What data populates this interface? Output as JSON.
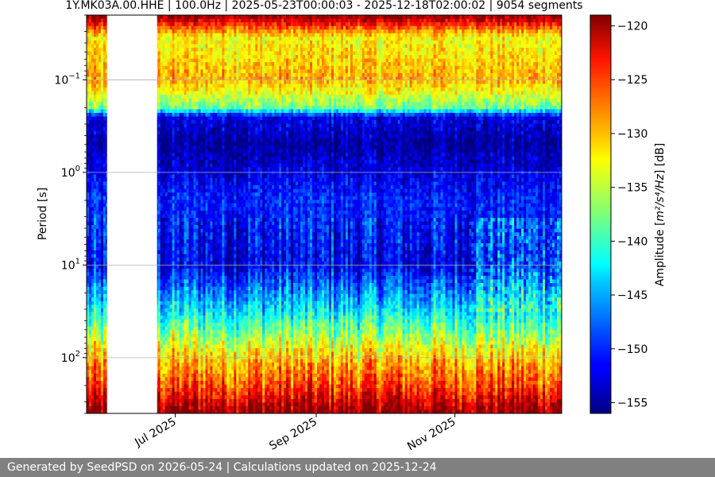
{
  "chart_data": {
    "type": "heatmap",
    "title": "1Y.MK03A.00.HHE | 100.0Hz | 2025-05-23T00:00:03 - 2025-12-18T02:00:02 | 9054 segments",
    "ylabel": "Period [s]",
    "xlabel": "",
    "colorbar_label_prefix": "Amplitude [",
    "colorbar_label_math": "m²/s⁴/Hz",
    "colorbar_label_suffix": "] [dB]",
    "x_range": [
      "2025-05-23",
      "2025-12-18"
    ],
    "x_ticks": [
      {
        "date": "2025-07-01",
        "label": "Jul 2025"
      },
      {
        "date": "2025-09-01",
        "label": "Sep 2025"
      },
      {
        "date": "2025-11-01",
        "label": "Nov 2025"
      }
    ],
    "y_scale": "log",
    "y_inverted": true,
    "y_range": [
      0.02,
      400
    ],
    "y_ticks": [
      {
        "value": 0.1,
        "base": "10",
        "exp": "−1"
      },
      {
        "value": 1,
        "base": "10",
        "exp": "0"
      },
      {
        "value": 10,
        "base": "10",
        "exp": "1"
      },
      {
        "value": 100,
        "base": "10",
        "exp": "2"
      }
    ],
    "grid": true,
    "data_gap": {
      "start": "2025-06-01",
      "end": "2025-06-23"
    },
    "colorbar": {
      "colormap": "jet",
      "range": [
        -156,
        -119
      ],
      "ticks": [
        "-120",
        "-125",
        "-130",
        "-135",
        "-140",
        "-145",
        "-150",
        "-155"
      ]
    },
    "bands": [
      {
        "period": 0.02,
        "db": -119
      },
      {
        "period": 0.035,
        "db": -133
      },
      {
        "period": 0.1,
        "db": -130
      },
      {
        "period": 0.2,
        "db": -138
      },
      {
        "period": 0.25,
        "db": -152
      },
      {
        "period": 0.5,
        "db": -155
      },
      {
        "period": 2,
        "db": -150
      },
      {
        "period": 10,
        "db": -152
      },
      {
        "period": 30,
        "db": -143
      },
      {
        "period": 100,
        "db": -131
      },
      {
        "period": 200,
        "db": -126
      },
      {
        "period": 300,
        "db": -122
      },
      {
        "period": 400,
        "db": -119
      }
    ]
  },
  "footer": {
    "text": "Generated by SeedPSD on 2026-05-24 | Calculations updated on 2025-12-24"
  }
}
